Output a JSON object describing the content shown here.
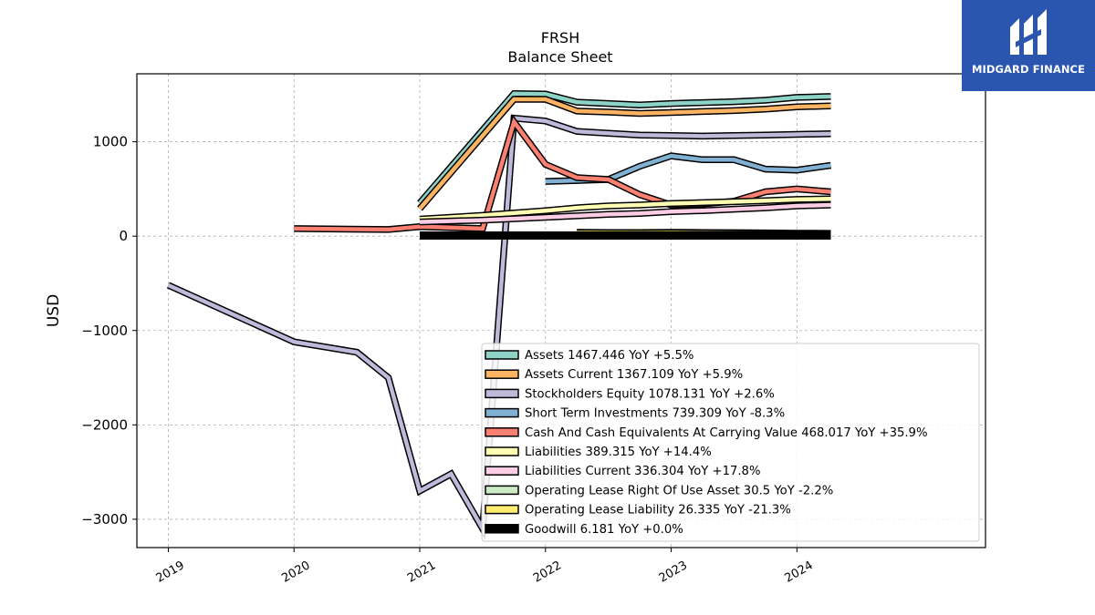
{
  "brand": {
    "name": "MIDGARD FINANCE",
    "background": "#2a56b0"
  },
  "chart_data": {
    "type": "line",
    "title": "FRSH",
    "subtitle": "Balance  Sheet",
    "ylabel": "USD",
    "xlabel": "",
    "xlim": [
      2018.75,
      2025.5
    ],
    "ylim": [
      -3300,
      1720
    ],
    "x_ticks": [
      2019,
      2020,
      2021,
      2022,
      2023,
      2024
    ],
    "x_tick_labels": [
      "2019",
      "2020",
      "2021",
      "2022",
      "2023",
      "2024"
    ],
    "y_ticks": [
      -3000,
      -2000,
      -1000,
      0,
      1000
    ],
    "y_tick_labels": [
      "−3000",
      "−2000",
      "−1000",
      "0",
      "1000"
    ],
    "grid": true,
    "legend_position": "bottom-right",
    "series": [
      {
        "name": "Assets",
        "legend": "Assets  1467.446 YoY +5.5%",
        "color": "#8dd3c7",
        "x": [
          2021.0,
          2021.75,
          2022.0,
          2022.25,
          2022.5,
          2022.75,
          2023.0,
          2023.25,
          2023.5,
          2023.75,
          2024.0,
          2024.27
        ],
        "y": [
          350,
          1510,
          1505,
          1420,
          1405,
          1390,
          1405,
          1415,
          1425,
          1440,
          1470,
          1480
        ]
      },
      {
        "name": "Assets Current",
        "legend": "Assets Current  1367.109 YoY +5.9%",
        "color": "#fdb462",
        "x": [
          2021.0,
          2021.75,
          2022.0,
          2022.25,
          2022.5,
          2022.75,
          2023.0,
          2023.25,
          2023.5,
          2023.75,
          2024.0,
          2024.27
        ],
        "y": [
          290,
          1450,
          1450,
          1325,
          1315,
          1300,
          1310,
          1320,
          1330,
          1345,
          1370,
          1380
        ]
      },
      {
        "name": "Stockholders Equity",
        "legend": "Stockholders Equity  1078.131 YoY +2.6%",
        "color": "#bebada",
        "x": [
          2019.0,
          2020.0,
          2020.5,
          2020.75,
          2021.0,
          2021.25,
          2021.5,
          2021.75,
          2022.0,
          2022.25,
          2022.5,
          2022.75,
          2023.0,
          2023.25,
          2023.5,
          2023.75,
          2024.0,
          2024.27
        ],
        "y": [
          -520,
          -1120,
          -1230,
          -1500,
          -2700,
          -2520,
          -3100,
          1250,
          1220,
          1110,
          1090,
          1070,
          1065,
          1060,
          1065,
          1070,
          1078,
          1085
        ]
      },
      {
        "name": "Short Term Investments",
        "legend": "Short Term Investments  739.309 YoY -8.3%",
        "color": "#80b1d3",
        "x": [
          2022.0,
          2022.25,
          2022.5,
          2022.75,
          2023.0,
          2023.25,
          2023.5,
          2023.75,
          2024.0,
          2024.27
        ],
        "y": [
          580,
          590,
          600,
          740,
          850,
          810,
          810,
          710,
          700,
          750
        ]
      },
      {
        "name": "Cash And Cash Equivalents At Carrying Value",
        "legend": "Cash And Cash Equivalents At Carrying Value  468.017 YoY +35.9%",
        "color": "#fb8072",
        "x": [
          2020.0,
          2020.75,
          2021.0,
          2021.5,
          2021.75,
          2022.0,
          2022.25,
          2022.5,
          2022.75,
          2023.0,
          2023.25,
          2023.5,
          2023.75,
          2024.0,
          2024.27
        ],
        "y": [
          80,
          70,
          100,
          80,
          1210,
          760,
          620,
          600,
          440,
          330,
          340,
          370,
          470,
          500,
          470
        ]
      },
      {
        "name": "Liabilities",
        "legend": "Liabilities  389.315 YoY +14.4%",
        "color": "#ffffb3",
        "x": [
          2021.0,
          2021.5,
          2022.0,
          2022.25,
          2022.5,
          2022.75,
          2023.0,
          2023.25,
          2023.5,
          2023.75,
          2024.0,
          2024.27
        ],
        "y": [
          180,
          220,
          270,
          300,
          320,
          330,
          345,
          355,
          365,
          375,
          389,
          395
        ]
      },
      {
        "name": "Liabilities Current",
        "legend": "Liabilities Current  336.304 YoY +17.8%",
        "color": "#fccde5",
        "x": [
          2021.0,
          2021.5,
          2022.0,
          2022.25,
          2022.5,
          2022.75,
          2023.0,
          2023.25,
          2023.5,
          2023.75,
          2024.0,
          2024.27
        ],
        "y": [
          150,
          170,
          200,
          215,
          230,
          240,
          260,
          270,
          285,
          300,
          320,
          330
        ]
      },
      {
        "name": "Operating Lease Right Of Use Asset",
        "legend": "Operating Lease Right Of Use Asset  30.5 YoY -2.2%",
        "color": "#ccebc5",
        "x": [
          2022.25,
          2022.5,
          2022.75,
          2023.0,
          2023.25,
          2023.5,
          2023.75,
          2024.0,
          2024.27
        ],
        "y": [
          40,
          38,
          37,
          40,
          38,
          36,
          34,
          31,
          30
        ]
      },
      {
        "name": "Operating Lease Liability",
        "legend": "Operating Lease Liability  26.335 YoY -21.3%",
        "color": "#ffed6f",
        "x": [
          2022.25,
          2022.5,
          2022.75,
          2023.0,
          2023.25,
          2023.5,
          2023.75,
          2024.0,
          2024.27
        ],
        "y": [
          35,
          34,
          33,
          34,
          32,
          30,
          29,
          27,
          26
        ]
      },
      {
        "name": "Goodwill",
        "legend": "Goodwill  6.181 YoY +0.0%",
        "color": "#000000",
        "x": [
          2021.0,
          2024.27
        ],
        "y": [
          6.181,
          6.181
        ]
      }
    ]
  }
}
